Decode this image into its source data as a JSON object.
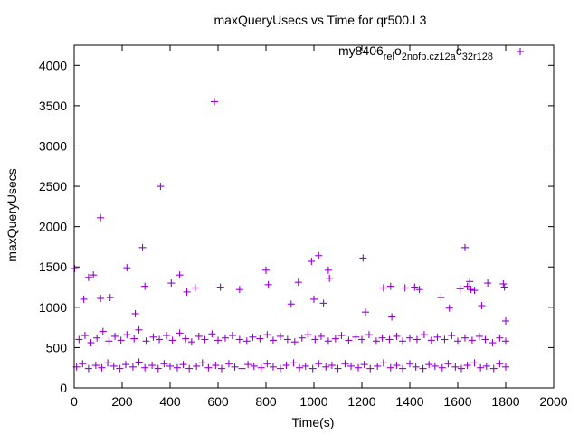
{
  "chart_data": {
    "type": "scatter",
    "title": "maxQueryUsecs vs Time for qr500.L3",
    "xlabel": "Time(s)",
    "ylabel": "maxQueryUsecs",
    "xlim": [
      0,
      2000
    ],
    "ylim": [
      0,
      4250
    ],
    "xticks": [
      "0",
      "200",
      "400",
      "600",
      "800",
      "1000",
      "1200",
      "1400",
      "1600",
      "1800",
      "2000"
    ],
    "yticks": [
      "0",
      "500",
      "1000",
      "1500",
      "2000",
      "2500",
      "3000",
      "3500",
      "4000"
    ],
    "grid": false,
    "legend_position": "top-right",
    "legend_parts": [
      "my8406",
      "rel",
      "o",
      "2nofp.cz12a",
      "c",
      "32r128"
    ],
    "marker": "+",
    "colors": {
      "series": "#9400d3",
      "axis": "#000000"
    },
    "series": [
      {
        "name": "my8406_rel_o2nofp.cz12a_c32r128",
        "points": [
          [
            2,
            1480
          ],
          [
            40,
            1100
          ],
          [
            60,
            1370
          ],
          [
            80,
            1400
          ],
          [
            110,
            2110
          ],
          [
            110,
            1110
          ],
          [
            150,
            1120
          ],
          [
            220,
            1490
          ],
          [
            255,
            920
          ],
          [
            285,
            1740
          ],
          [
            295,
            1260
          ],
          [
            360,
            2500
          ],
          [
            405,
            1300
          ],
          [
            440,
            1400
          ],
          [
            470,
            1190
          ],
          [
            505,
            1240
          ],
          [
            585,
            3550
          ],
          [
            610,
            1250
          ],
          [
            690,
            1220
          ],
          [
            800,
            1460
          ],
          [
            810,
            1280
          ],
          [
            905,
            1040
          ],
          [
            935,
            1310
          ],
          [
            990,
            1570
          ],
          [
            1000,
            1100
          ],
          [
            1020,
            1640
          ],
          [
            1040,
            1050
          ],
          [
            1060,
            1460
          ],
          [
            1065,
            1360
          ],
          [
            1205,
            1610
          ],
          [
            1215,
            940
          ],
          [
            1290,
            1240
          ],
          [
            1320,
            1260
          ],
          [
            1325,
            880
          ],
          [
            1380,
            1240
          ],
          [
            1420,
            1250
          ],
          [
            1440,
            1220
          ],
          [
            1530,
            1120
          ],
          [
            1565,
            990
          ],
          [
            1610,
            1230
          ],
          [
            1630,
            1740
          ],
          [
            1640,
            1260
          ],
          [
            1650,
            1320
          ],
          [
            1655,
            1220
          ],
          [
            1670,
            1210
          ],
          [
            1700,
            1020
          ],
          [
            1725,
            1300
          ],
          [
            1790,
            1290
          ],
          [
            1795,
            1250
          ],
          [
            1800,
            830
          ],
          [
            20,
            600
          ],
          [
            45,
            650
          ],
          [
            70,
            560
          ],
          [
            95,
            620
          ],
          [
            120,
            700
          ],
          [
            145,
            580
          ],
          [
            170,
            640
          ],
          [
            195,
            590
          ],
          [
            220,
            660
          ],
          [
            250,
            610
          ],
          [
            270,
            720
          ],
          [
            300,
            580
          ],
          [
            330,
            630
          ],
          [
            355,
            600
          ],
          [
            385,
            650
          ],
          [
            410,
            590
          ],
          [
            440,
            680
          ],
          [
            465,
            610
          ],
          [
            490,
            570
          ],
          [
            520,
            640
          ],
          [
            545,
            600
          ],
          [
            575,
            670
          ],
          [
            600,
            590
          ],
          [
            630,
            620
          ],
          [
            660,
            650
          ],
          [
            690,
            600
          ],
          [
            720,
            580
          ],
          [
            745,
            630
          ],
          [
            775,
            610
          ],
          [
            805,
            660
          ],
          [
            830,
            590
          ],
          [
            860,
            640
          ],
          [
            890,
            600
          ],
          [
            920,
            570
          ],
          [
            950,
            620
          ],
          [
            975,
            660
          ],
          [
            1005,
            600
          ],
          [
            1030,
            640
          ],
          [
            1060,
            580
          ],
          [
            1090,
            610
          ],
          [
            1115,
            650
          ],
          [
            1145,
            590
          ],
          [
            1175,
            630
          ],
          [
            1200,
            600
          ],
          [
            1230,
            660
          ],
          [
            1260,
            580
          ],
          [
            1285,
            620
          ],
          [
            1315,
            600
          ],
          [
            1345,
            640
          ],
          [
            1370,
            580
          ],
          [
            1400,
            620
          ],
          [
            1430,
            600
          ],
          [
            1460,
            660
          ],
          [
            1490,
            590
          ],
          [
            1515,
            630
          ],
          [
            1545,
            600
          ],
          [
            1575,
            650
          ],
          [
            1600,
            580
          ],
          [
            1630,
            620
          ],
          [
            1660,
            590
          ],
          [
            1690,
            640
          ],
          [
            1715,
            600
          ],
          [
            1745,
            560
          ],
          [
            1775,
            620
          ],
          [
            1800,
            580
          ],
          [
            10,
            260
          ],
          [
            35,
            300
          ],
          [
            60,
            240
          ],
          [
            90,
            280
          ],
          [
            115,
            250
          ],
          [
            140,
            310
          ],
          [
            165,
            270
          ],
          [
            190,
            240
          ],
          [
            215,
            290
          ],
          [
            245,
            260
          ],
          [
            270,
            320
          ],
          [
            295,
            250
          ],
          [
            325,
            280
          ],
          [
            350,
            240
          ],
          [
            375,
            300
          ],
          [
            400,
            270
          ],
          [
            430,
            250
          ],
          [
            455,
            290
          ],
          [
            480,
            240
          ],
          [
            510,
            270
          ],
          [
            535,
            310
          ],
          [
            560,
            250
          ],
          [
            590,
            280
          ],
          [
            615,
            240
          ],
          [
            645,
            300
          ],
          [
            670,
            260
          ],
          [
            700,
            240
          ],
          [
            725,
            290
          ],
          [
            750,
            270
          ],
          [
            780,
            250
          ],
          [
            805,
            300
          ],
          [
            830,
            260
          ],
          [
            860,
            240
          ],
          [
            885,
            280
          ],
          [
            915,
            310
          ],
          [
            940,
            250
          ],
          [
            965,
            270
          ],
          [
            995,
            240
          ],
          [
            1020,
            300
          ],
          [
            1050,
            260
          ],
          [
            1075,
            280
          ],
          [
            1100,
            240
          ],
          [
            1130,
            300
          ],
          [
            1155,
            270
          ],
          [
            1185,
            250
          ],
          [
            1210,
            290
          ],
          [
            1235,
            240
          ],
          [
            1265,
            270
          ],
          [
            1290,
            310
          ],
          [
            1320,
            250
          ],
          [
            1345,
            280
          ],
          [
            1370,
            240
          ],
          [
            1400,
            300
          ],
          [
            1425,
            260
          ],
          [
            1455,
            240
          ],
          [
            1480,
            290
          ],
          [
            1505,
            270
          ],
          [
            1535,
            250
          ],
          [
            1560,
            300
          ],
          [
            1590,
            260
          ],
          [
            1615,
            240
          ],
          [
            1640,
            280
          ],
          [
            1670,
            310
          ],
          [
            1695,
            250
          ],
          [
            1720,
            270
          ],
          [
            1750,
            240
          ],
          [
            1775,
            300
          ],
          [
            1800,
            260
          ]
        ]
      }
    ]
  }
}
